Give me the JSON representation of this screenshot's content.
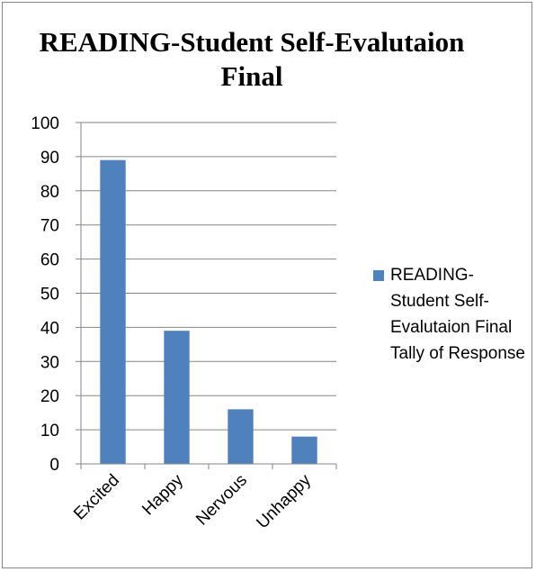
{
  "chart_data": {
    "type": "bar",
    "title": "READING-Student Self-Evalutaion Final",
    "categories": [
      "Excited",
      "Happy",
      "Nervous",
      "Unhappy"
    ],
    "series": [
      {
        "name": "READING-Student Self-Evalutaion Final Tally of Response",
        "values": [
          89,
          39,
          16,
          8
        ],
        "color": "#4f81bd"
      }
    ],
    "y_ticks": [
      0,
      10,
      20,
      30,
      40,
      50,
      60,
      70,
      80,
      90,
      100
    ],
    "ylim": [
      0,
      100
    ],
    "grid": true,
    "legend_position": "right",
    "gridline_color": "#868686",
    "axis_color": "#868686"
  }
}
